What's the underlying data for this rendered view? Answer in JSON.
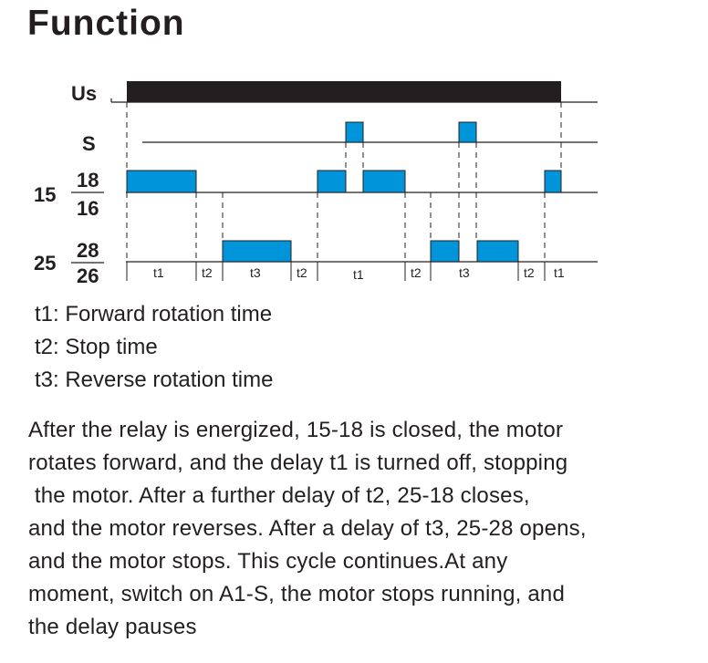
{
  "title": "Function",
  "diagram": {
    "signals": {
      "us": "Us",
      "s": "S",
      "c18": "18",
      "c16": "16",
      "g15": "15",
      "c28": "28",
      "c26": "26",
      "g25": "25"
    },
    "segments": [
      "t1",
      "t2",
      "t3",
      "t2",
      "t1",
      "t2",
      "t3",
      "t2",
      "t1"
    ],
    "colors": {
      "pulse": "#0095da",
      "supply": "#231f20",
      "line": "#231f20"
    }
  },
  "legend": [
    "t1: Forward rotation time",
    "t2: Stop time",
    "t3: Reverse rotation time"
  ],
  "description": [
    "After the relay is energized, 15-18 is closed, the motor",
    "rotates forward, and the delay t1 is turned off, stopping",
    " the motor. After a further delay of t2, 25-18 closes,",
    "and the motor reverses. After a delay of t3, 25-28 opens,",
    "and the motor stops. This cycle continues.At any",
    "moment, switch on A1-S, the motor stops running, and",
    "the delay pauses"
  ]
}
